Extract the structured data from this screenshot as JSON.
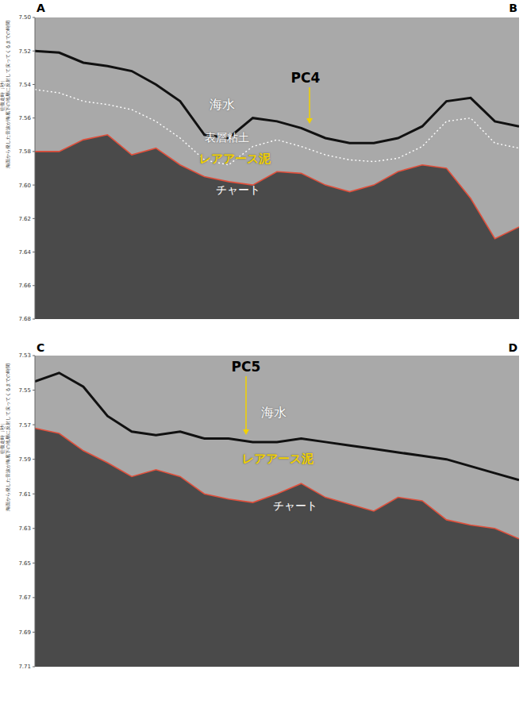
{
  "chart_data": [
    {
      "type": "line",
      "corner_labels": [
        "A",
        "B"
      ],
      "y_label": [
        "往復走時（秒）",
        "海面から発した音波が海底下の地層に反射して戻ってくるまでの時間"
      ],
      "annotations": [
        {
          "text": "海水",
          "color": "#ffffff"
        },
        {
          "text": "表層粘土",
          "color": "#ffffff"
        },
        {
          "text": "レアアース泥",
          "color": "#f2d200"
        },
        {
          "text": "チャート",
          "color": "#ffffff"
        },
        {
          "text": "PC4",
          "color": "#000000"
        }
      ],
      "xlim": [
        0,
        100
      ],
      "tick_labels": "y",
      "ylim": [
        7.5,
        7.68
      ],
      "yticks": [
        {
          "value": 7.5,
          "label": "7.50"
        },
        {
          "value": 7.52,
          "label": "7.52"
        },
        {
          "value": 7.54,
          "label": "7.54"
        },
        {
          "value": 7.56,
          "label": "7.56"
        },
        {
          "value": 7.58,
          "label": "7.58"
        },
        {
          "value": 7.6,
          "label": "7.60"
        },
        {
          "value": 7.62,
          "label": "7.62"
        },
        {
          "value": 7.64,
          "label": "7.64"
        },
        {
          "value": 7.66,
          "label": "7.66"
        },
        {
          "value": 7.68,
          "label": "7.68"
        }
      ],
      "x": [
        0,
        5,
        10,
        15,
        20,
        25,
        30,
        35,
        40,
        45,
        50,
        55,
        60,
        65,
        70,
        75,
        80,
        85,
        90,
        95,
        100
      ],
      "series": [
        {
          "type": "area",
          "color": "#e0503c",
          "line_style": "solid",
          "values": [
            7.58,
            7.58,
            7.573,
            7.57,
            7.582,
            7.578,
            7.588,
            7.595,
            7.598,
            7.6,
            7.592,
            7.593,
            7.6,
            7.604,
            7.6,
            7.592,
            7.588,
            7.59,
            7.608,
            7.632,
            7.625
          ]
        },
        {
          "type": "line",
          "color": "#ffffff",
          "line_style": "dotted",
          "values": [
            7.543,
            7.545,
            7.55,
            7.552,
            7.555,
            7.562,
            7.572,
            7.585,
            7.588,
            7.577,
            7.573,
            7.577,
            7.582,
            7.585,
            7.586,
            7.584,
            7.577,
            7.562,
            7.56,
            7.575,
            7.578
          ]
        },
        {
          "type": "line",
          "color": "#111111",
          "line_style": "solid",
          "values": [
            7.52,
            7.521,
            7.527,
            7.529,
            7.532,
            7.54,
            7.55,
            7.57,
            7.572,
            7.56,
            7.562,
            7.566,
            7.572,
            7.575,
            7.575,
            7.572,
            7.565,
            7.55,
            7.548,
            7.562,
            7.565
          ]
        }
      ]
    },
    {
      "type": "line",
      "corner_labels": [
        "C",
        "D"
      ],
      "y_label": [
        "往復走時（秒）",
        "海面から発した音波が海底下の地層に反射して戻ってくるまでの時間"
      ],
      "annotations": [
        {
          "text": "PC5",
          "color": "#000000"
        },
        {
          "text": "海水",
          "color": "#ffffff"
        },
        {
          "text": "レアアース泥",
          "color": "#f2d200"
        },
        {
          "text": "チャート",
          "color": "#ffffff"
        }
      ],
      "xlim": [
        0,
        100
      ],
      "tick_labels": "y",
      "ylim": [
        7.53,
        7.71
      ],
      "yticks": [
        {
          "value": 7.53,
          "label": "7.53"
        },
        {
          "value": 7.55,
          "label": "7.55"
        },
        {
          "value": 7.57,
          "label": "7.57"
        },
        {
          "value": 7.59,
          "label": "7.59"
        },
        {
          "value": 7.61,
          "label": "7.61"
        },
        {
          "value": 7.63,
          "label": "7.63"
        },
        {
          "value": 7.65,
          "label": "7.65"
        },
        {
          "value": 7.67,
          "label": "7.67"
        },
        {
          "value": 7.69,
          "label": "7.69"
        },
        {
          "value": 7.71,
          "label": "7.71"
        }
      ],
      "x": [
        0,
        5,
        10,
        15,
        20,
        25,
        30,
        35,
        40,
        45,
        50,
        55,
        60,
        65,
        70,
        75,
        80,
        85,
        90,
        95,
        100
      ],
      "series": [
        {
          "type": "area",
          "color": "#e0503c",
          "line_style": "solid",
          "values": [
            7.572,
            7.575,
            7.585,
            7.592,
            7.6,
            7.596,
            7.6,
            7.61,
            7.613,
            7.615,
            7.61,
            7.604,
            7.612,
            7.616,
            7.62,
            7.612,
            7.614,
            7.625,
            7.628,
            7.63,
            7.636
          ]
        },
        {
          "type": "line",
          "color": "#111111",
          "line_style": "solid",
          "values": [
            7.545,
            7.54,
            7.548,
            7.565,
            7.574,
            7.576,
            7.574,
            7.578,
            7.578,
            7.58,
            7.58,
            7.578,
            7.58,
            7.582,
            7.584,
            7.586,
            7.588,
            7.59,
            7.594,
            7.598,
            7.602
          ]
        }
      ]
    }
  ]
}
